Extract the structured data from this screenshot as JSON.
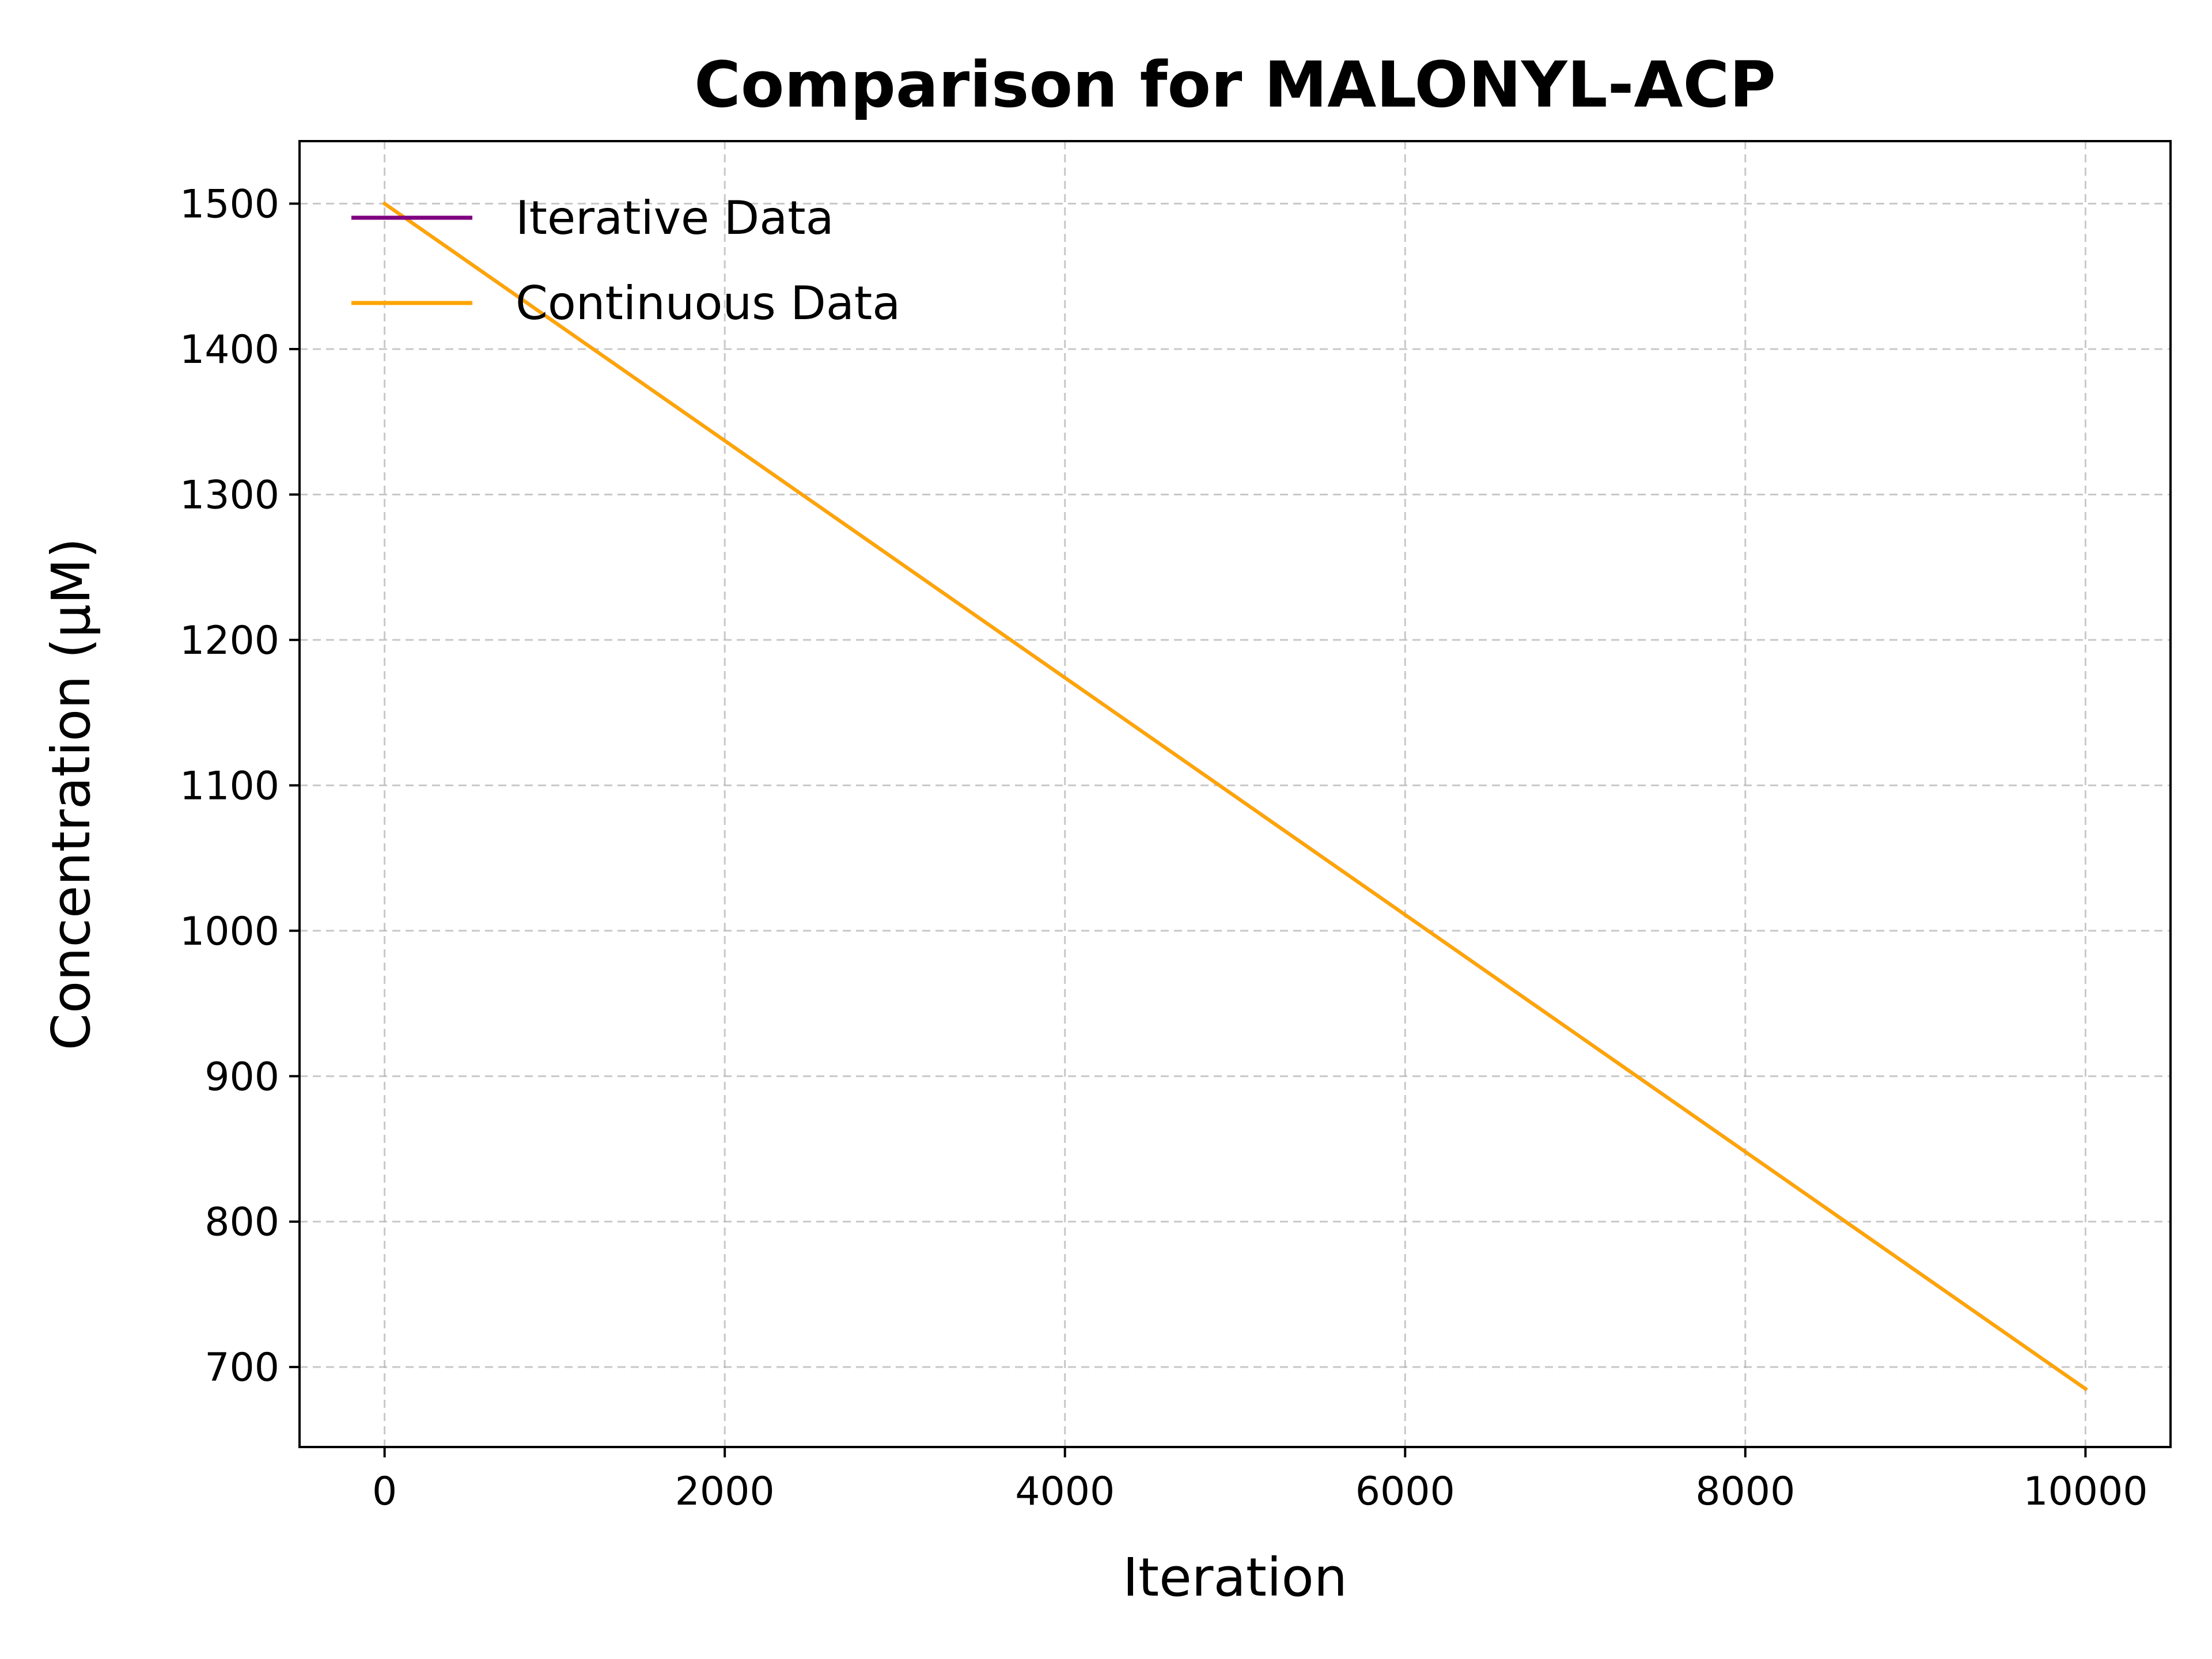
{
  "chart_data": {
    "type": "line",
    "title": "Comparison for MALONYL-ACP",
    "xlabel": "Iteration",
    "ylabel": "Concentration (μM)",
    "xlim": [
      -500,
      10500
    ],
    "ylim": [
      645,
      1543
    ],
    "x_ticks": [
      0,
      2000,
      4000,
      6000,
      8000,
      10000
    ],
    "x_tick_labels": [
      "0",
      "2000",
      "4000",
      "6000",
      "8000",
      "10000"
    ],
    "y_ticks": [
      700,
      800,
      900,
      1000,
      1100,
      1200,
      1300,
      1400,
      1500
    ],
    "y_tick_labels": [
      "700",
      "800",
      "900",
      "1000",
      "1100",
      "1200",
      "1300",
      "1400",
      "1500"
    ],
    "grid": true,
    "legend_position": "top-left",
    "series": [
      {
        "name": "Iterative Data",
        "color": "#800080",
        "x": [
          0,
          10000
        ],
        "y": [
          1500,
          685
        ]
      },
      {
        "name": "Continuous Data",
        "color": "#FFA500",
        "x": [
          0,
          10000
        ],
        "y": [
          1500,
          685
        ]
      }
    ]
  }
}
